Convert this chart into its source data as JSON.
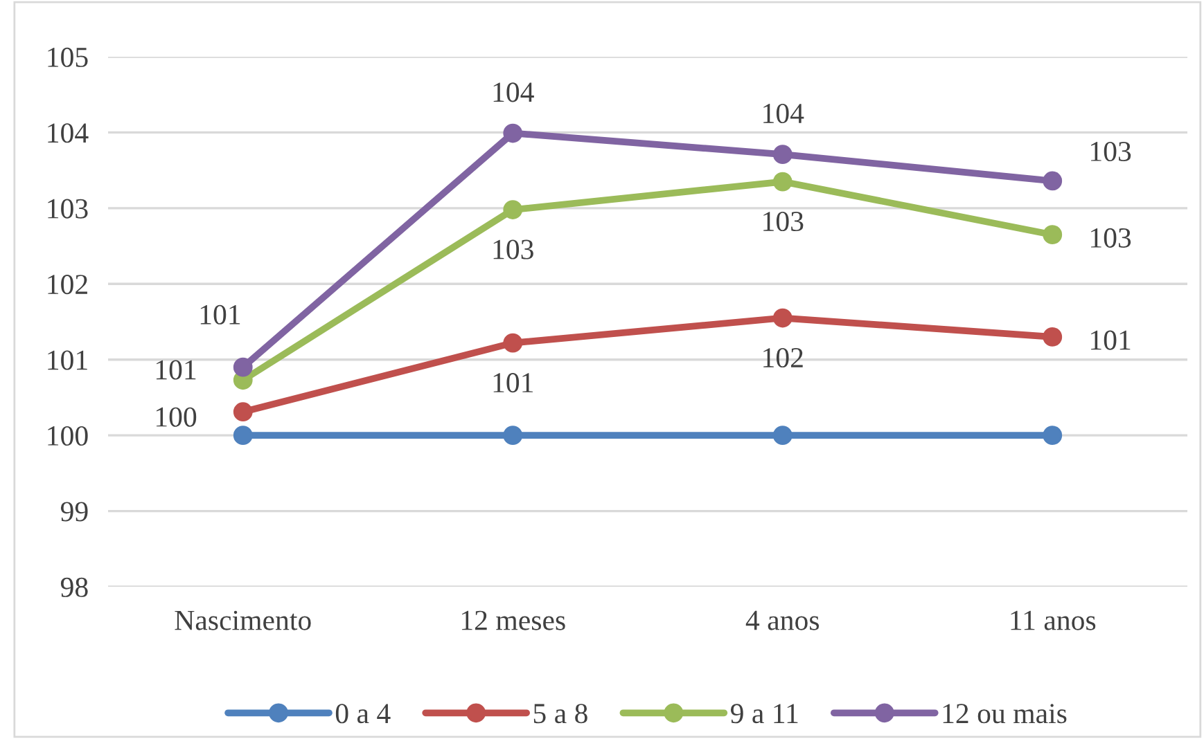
{
  "chart_data": {
    "type": "line",
    "categories": [
      "Nascimento",
      "12 meses",
      "4 anos",
      "11 anos"
    ],
    "series": [
      {
        "name": "0 a 4",
        "color": "#4f81bd",
        "values": [
          100,
          100,
          100,
          100
        ]
      },
      {
        "name": "5 a 8",
        "color": "#c0504d",
        "values": [
          100.31,
          101.22,
          101.55,
          101.3
        ],
        "value_labels": [
          "100",
          "101",
          "102",
          "101"
        ]
      },
      {
        "name": "9 a 11",
        "color": "#9bbb59",
        "values": [
          100.73,
          102.98,
          103.35,
          102.65
        ],
        "value_labels": [
          "101",
          "103",
          "103",
          "103"
        ]
      },
      {
        "name": "12 ou mais",
        "color": "#8064a2",
        "values": [
          100.9,
          103.99,
          103.71,
          103.36
        ],
        "value_labels": [
          "101",
          "104",
          "104",
          "103"
        ]
      }
    ],
    "ylim": [
      98,
      105
    ],
    "yticks": [
      98,
      99,
      100,
      101,
      102,
      103,
      104,
      105
    ],
    "grid": "y",
    "legend": "bottom",
    "marker": "circle",
    "line_style": "solid"
  }
}
